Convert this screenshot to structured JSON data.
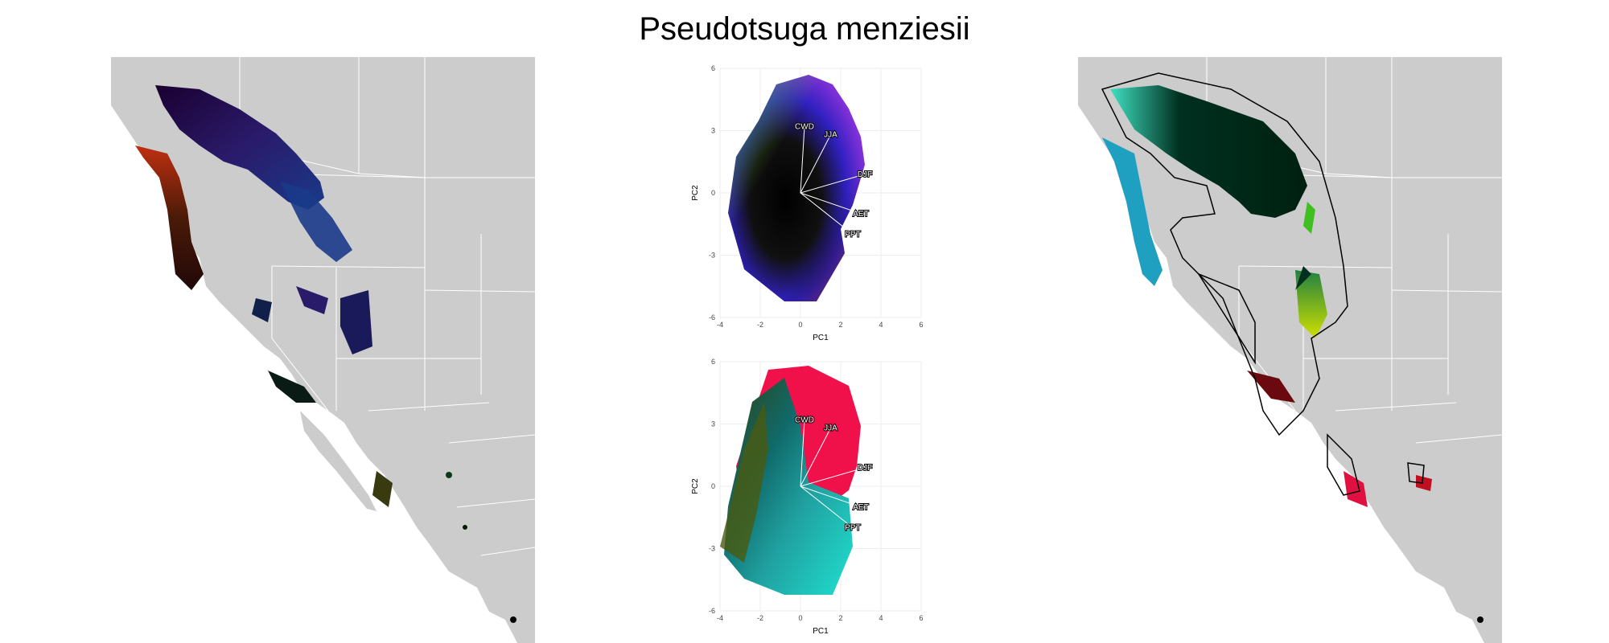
{
  "title": "Pseudotsuga menziesii",
  "colors": {
    "land": "#cccccc",
    "borders": "#ffffff",
    "ocean": "#ffffff"
  },
  "chart_data": [
    {
      "type": "scatter",
      "xlabel": "PC1",
      "ylabel": "PC2",
      "xlim": [
        -4,
        6
      ],
      "ylim": [
        -6,
        6
      ],
      "xticks": [
        "-4",
        "-2",
        "0",
        "2",
        "4",
        "6"
      ],
      "yticks": [
        "-6",
        "-3",
        "0",
        "3",
        "6"
      ],
      "grid": true,
      "vectors": [
        {
          "label": "CWD",
          "x": 0.2,
          "y": 3.2
        },
        {
          "label": "JJA",
          "x": 1.5,
          "y": 2.8
        },
        {
          "label": "DJF",
          "x": 3.2,
          "y": 0.9
        },
        {
          "label": "AET",
          "x": 3.0,
          "y": -1.0
        },
        {
          "label": "PPT",
          "x": 2.6,
          "y": -2.0
        }
      ]
    },
    {
      "type": "scatter",
      "xlabel": "PC1",
      "ylabel": "PC2",
      "xlim": [
        -4,
        6
      ],
      "ylim": [
        -6,
        6
      ],
      "xticks": [
        "-4",
        "-2",
        "0",
        "2",
        "4",
        "6"
      ],
      "yticks": [
        "-6",
        "-3",
        "0",
        "3",
        "6"
      ],
      "grid": true,
      "vectors": [
        {
          "label": "CWD",
          "x": 0.2,
          "y": 3.2
        },
        {
          "label": "JJA",
          "x": 1.5,
          "y": 2.8
        },
        {
          "label": "DJF",
          "x": 3.2,
          "y": 0.9
        },
        {
          "label": "AET",
          "x": 3.0,
          "y": -1.0
        },
        {
          "label": "PPT",
          "x": 2.6,
          "y": -2.0
        }
      ]
    }
  ]
}
